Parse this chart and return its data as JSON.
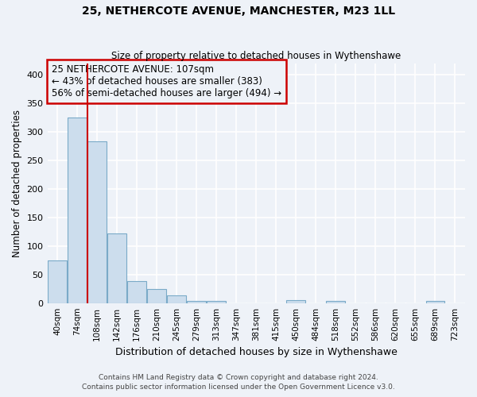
{
  "title": "25, NETHERCOTE AVENUE, MANCHESTER, M23 1LL",
  "subtitle": "Size of property relative to detached houses in Wythenshawe",
  "xlabel": "Distribution of detached houses by size in Wythenshawe",
  "ylabel": "Number of detached properties",
  "annotation_line1": "25 NETHERCOTE AVENUE: 107sqm",
  "annotation_line2": "← 43% of detached houses are smaller (383)",
  "annotation_line3": "56% of semi-detached houses are larger (494) →",
  "bar_labels": [
    "40sqm",
    "74sqm",
    "108sqm",
    "142sqm",
    "176sqm",
    "210sqm",
    "245sqm",
    "279sqm",
    "313sqm",
    "347sqm",
    "381sqm",
    "415sqm",
    "450sqm",
    "484sqm",
    "518sqm",
    "552sqm",
    "586sqm",
    "620sqm",
    "655sqm",
    "689sqm",
    "723sqm"
  ],
  "bar_values": [
    75,
    325,
    283,
    122,
    38,
    25,
    13,
    4,
    4,
    0,
    0,
    0,
    5,
    0,
    4,
    0,
    0,
    0,
    0,
    4,
    0
  ],
  "bar_color": "#ccdded",
  "bar_edge_color": "#7aaac8",
  "vline_x": 1.5,
  "vline_color": "#cc0000",
  "annotation_box_edge_color": "#cc0000",
  "annotation_text_color": "#000000",
  "background_color": "#eef2f8",
  "grid_color": "#ffffff",
  "ylim": [
    0,
    420
  ],
  "yticks": [
    0,
    50,
    100,
    150,
    200,
    250,
    300,
    350,
    400
  ],
  "footer_line1": "Contains HM Land Registry data © Crown copyright and database right 2024.",
  "footer_line2": "Contains public sector information licensed under the Open Government Licence v3.0."
}
